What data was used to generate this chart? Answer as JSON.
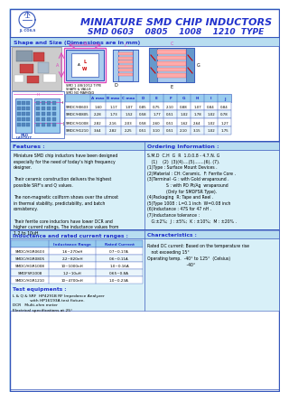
{
  "title": "MINIATURE SMD CHIP INDUCTORS",
  "subtitle": "SMD 0603    0805    1008    1210  TYPE",
  "section1_title": "Shape and Size (Dimensions are in mm)",
  "table_headers": [
    "",
    "A max",
    "B max",
    "C max",
    "D",
    "E",
    "F",
    "G",
    "H",
    "I",
    "J"
  ],
  "table_rows": [
    [
      "SMDC/H0603",
      "1.60",
      "1.17",
      "1.07",
      "0.85",
      "0.75",
      "2.10",
      "0.88",
      "1.07",
      "0.84",
      "0.84"
    ],
    [
      "SMDC/H0805",
      "2.28",
      "1.73",
      "1.52",
      "0.58",
      "1.77",
      "0.51",
      "1.02",
      "1.78",
      "1.02",
      "0.78"
    ],
    [
      "SMDC/H1008",
      "2.82",
      "2.16",
      "2.03",
      "0.58",
      "2.60",
      "0.51",
      "1.62",
      "2.64",
      "1.02",
      "1.27"
    ],
    [
      "SMDC/H1210",
      "3.64",
      "2.82",
      "2.25",
      "0.51",
      "3.10",
      "0.51",
      "2.10",
      "3.15",
      "1.02",
      "1.75"
    ]
  ],
  "features_title": "Features :",
  "features_text": "Miniature SMD chip inductors have been designed\nespecially for the need of today's high frequency\ndesigner.\n \nTheir ceramic construction delivers the highest\npossible SRF's and Q values.\n \nThe non-magnetic coilform shows over the utmost\nin thermal stability, predictability, and batch\nconsistency.\n \nTheir ferrite core inductors have lower DCR and\nhigher current ratings. The inductance values from\n1.2 to 10uH.",
  "ordering_title": "Ordering Information :",
  "ordering_text": "S.M.D  C.H  G  R  1.0.0.8 - 4.7.N. G\n   (1)    (2)  (3)(4)....(5).......(6). (7).\n(1)Type : Surface Mount Devices .\n(2)Material : CH: Ceramic,  F: Ferrite Core .\n(3)Terminal -G : with Gold wraparound .\n              S : with PD Pt/Ag  wraparound\n              (Only for SMDFSR Type).\n(4)Packaging  R: Tape and Reel .\n(5)Type 1008 : L=0.1 inch  W=0.08 inch\n(6)Inductance : 47S for 47 nH .\n(7)Inductance tolerance :\n   G:±2%;  J : ±5%;  K : ±10%;  M : ±20% .",
  "ind_title": "Inductance and rated current ranges :",
  "ind_col_headers": [
    "",
    "Inductance Range",
    "Rated Current"
  ],
  "ind_rows": [
    [
      "SMDC/HGR0603",
      "1.6~270nH",
      "0.7~0.17A"
    ],
    [
      "SMDC/HGR0805",
      "2.2~820nH",
      "0.6~0.11A"
    ],
    [
      "SMDC/HGR1008",
      "10~1000nH",
      "1.0~0.16A"
    ],
    [
      "SMDFSR1008",
      "1.2~10uH",
      "0.65~0.8A"
    ],
    [
      "SMDC/HGR1210",
      "10~4700nH",
      "1.0~0.23A"
    ]
  ],
  "char_title": "Characteristics :",
  "char_text": "Rated DC current: Based on the temperature rise\n   not exceeding 15°\nOperating temp.  -40° to 125°  (Celsius)\n                             -40°",
  "test_title": "Test equipments :",
  "test_text": "L & Q & SRF  HP4291B RF Impedance Analyzer\n              with HP16193A test fixture.\nDCR   Multi-ohm meter\nElectrical specifications at 25°",
  "bg_color": "#d8f0f8",
  "header_bg": "#b8ddf0",
  "border_color": "#3355bb",
  "title_color": "#2233cc",
  "text_color": "#000000",
  "white": "#ffffff"
}
